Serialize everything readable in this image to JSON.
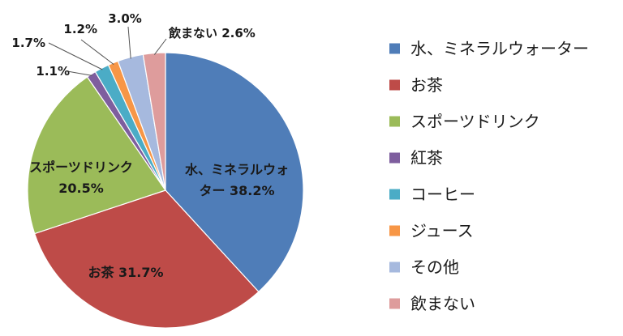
{
  "chart_data": {
    "type": "pie",
    "title": "",
    "categories": [
      "水、ミネラルウォーター",
      "お茶",
      "スポーツドリンク",
      "紅茶",
      "コーヒー",
      "ジュース",
      "その他",
      "飲まない"
    ],
    "values": [
      38.2,
      31.7,
      20.5,
      1.1,
      1.7,
      1.2,
      3.0,
      2.6
    ],
    "data_labels": [
      [
        "水、ミネラルウォ",
        "ター 38.2%"
      ],
      [
        "お茶 31.7%"
      ],
      [
        "スポーツドリンク",
        "20.5%"
      ],
      [
        "1.1%"
      ],
      [
        "1.7%"
      ],
      [
        "1.2%"
      ],
      [
        "3.0%"
      ],
      [
        "飲まない 2.6%"
      ]
    ],
    "colors": [
      "#4F7DB8",
      "#BE4B48",
      "#9BBB59",
      "#7E5E9E",
      "#4BACC6",
      "#F79646",
      "#A6B9DE",
      "#DE9C9C"
    ],
    "legend_position": "right",
    "start_angle_deg": 0,
    "direction": "clockwise"
  }
}
